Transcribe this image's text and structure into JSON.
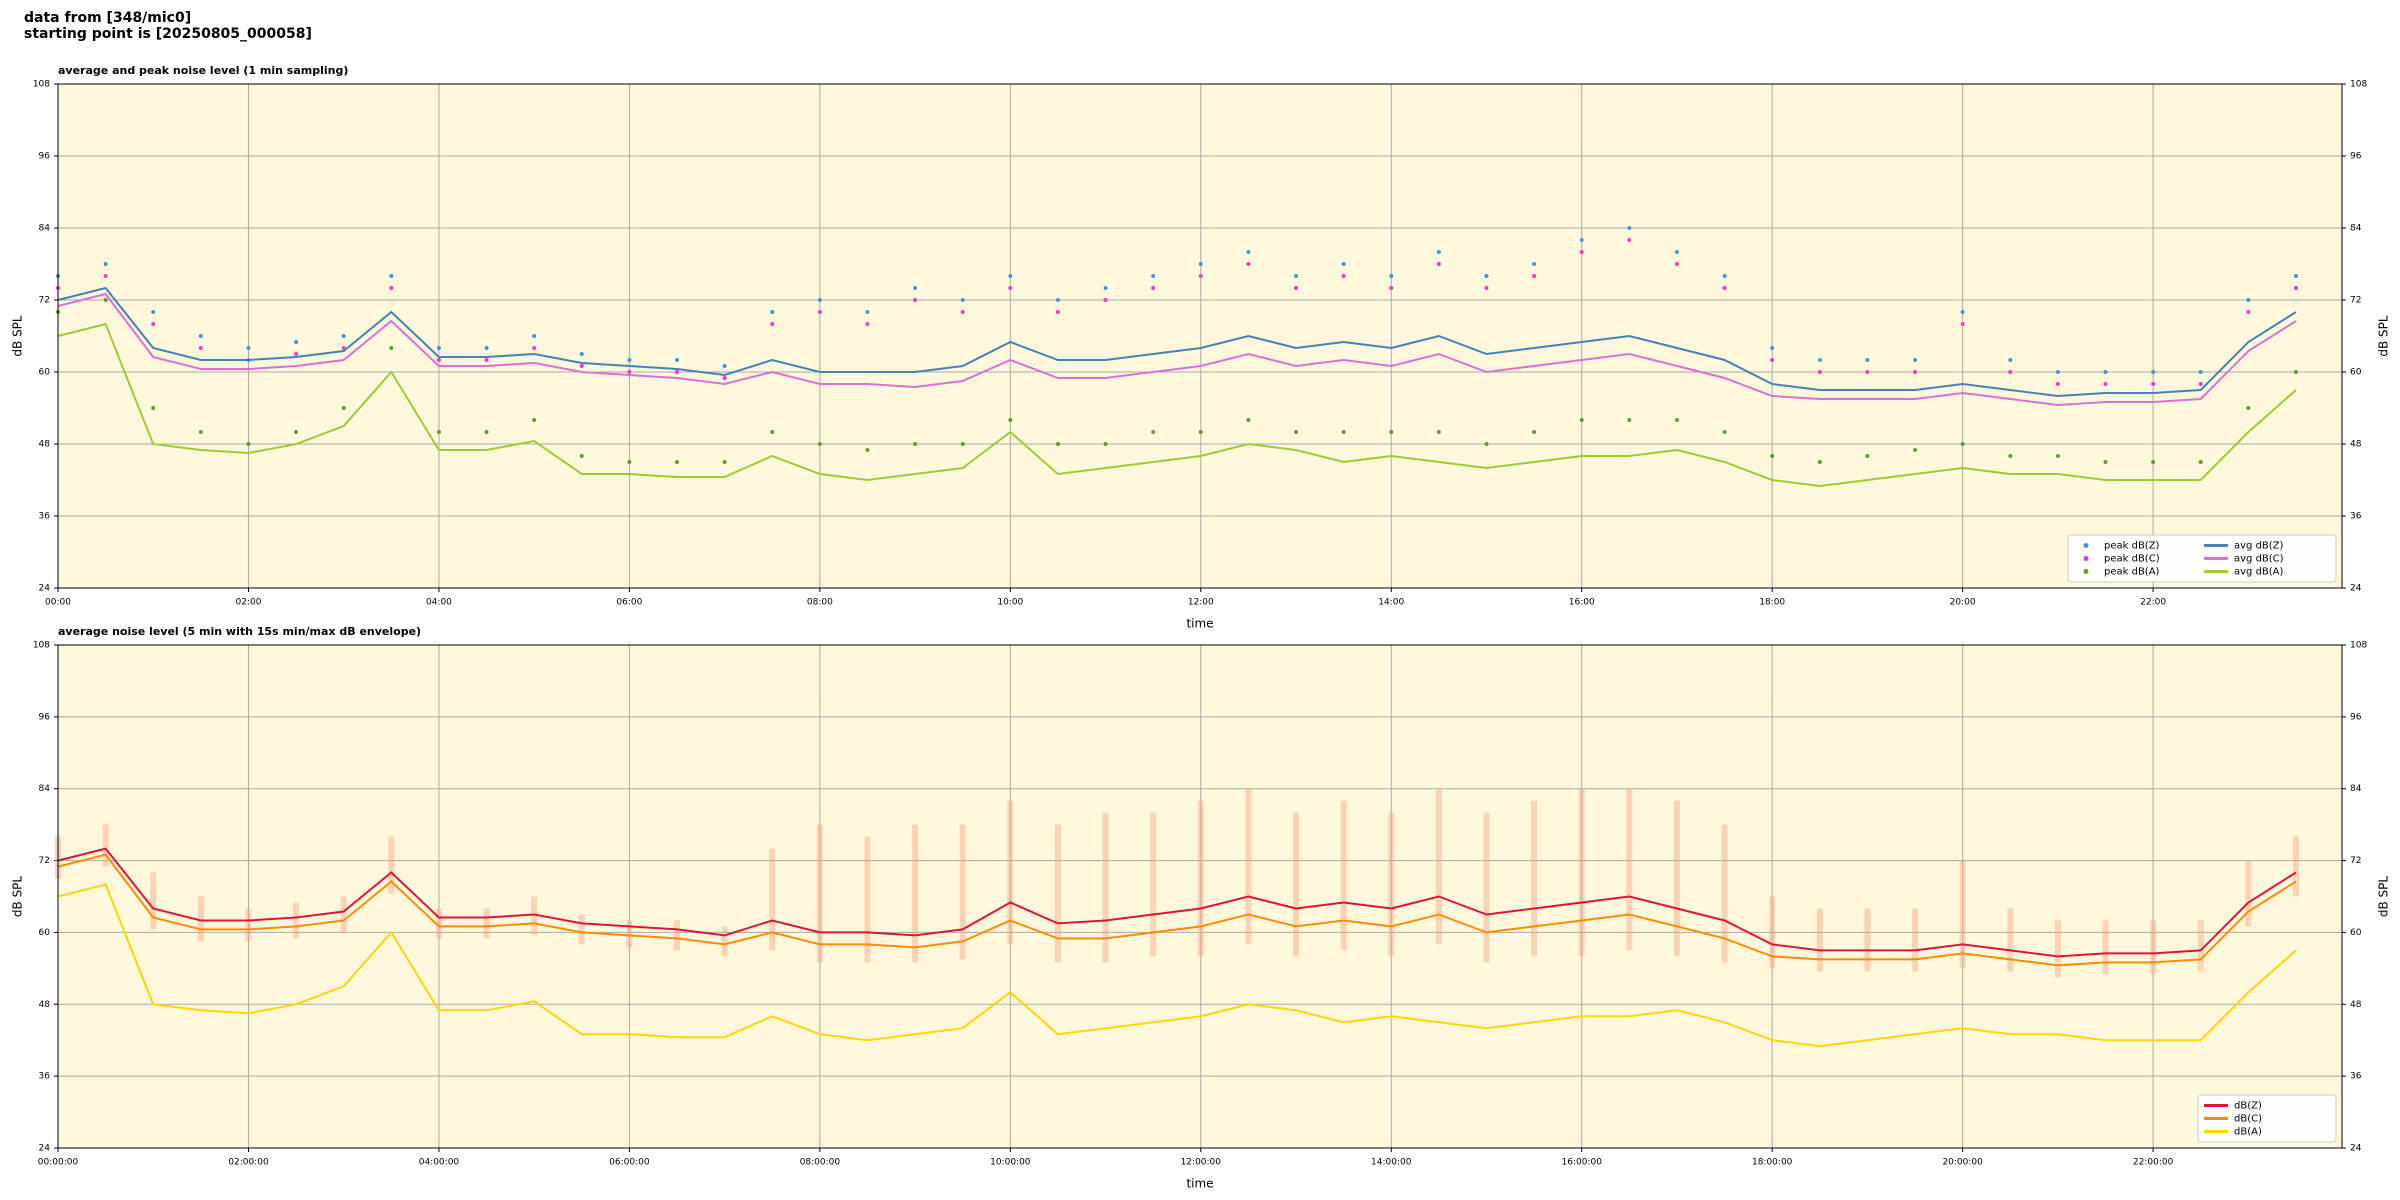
{
  "header": [
    "data from [348/mic0]",
    "starting point is [20250805_000058]"
  ],
  "chart_data": [
    {
      "type": "line",
      "title": "average and peak noise level (1 min sampling)",
      "x_label": "time",
      "y_label": "dB SPL",
      "x": [
        "00:00",
        "00:30",
        "01:00",
        "01:30",
        "02:00",
        "02:30",
        "03:00",
        "03:30",
        "04:00",
        "04:30",
        "05:00",
        "05:30",
        "06:00",
        "06:30",
        "07:00",
        "07:30",
        "08:00",
        "08:30",
        "09:00",
        "09:30",
        "10:00",
        "10:30",
        "11:00",
        "11:30",
        "12:00",
        "12:30",
        "13:00",
        "13:30",
        "14:00",
        "14:30",
        "15:00",
        "15:30",
        "16:00",
        "16:30",
        "17:00",
        "17:30",
        "18:00",
        "18:30",
        "19:00",
        "19:30",
        "20:00",
        "20:30",
        "21:00",
        "21:30",
        "22:00",
        "22:30",
        "23:00",
        "23:30"
      ],
      "xlim": [
        "00:00",
        "23:59"
      ],
      "xticks": [
        "00:00",
        "02:00",
        "04:00",
        "06:00",
        "08:00",
        "10:00",
        "12:00",
        "14:00",
        "16:00",
        "18:00",
        "20:00",
        "22:00"
      ],
      "ylim": [
        24,
        108
      ],
      "yticks": [
        24,
        36,
        48,
        60,
        72,
        84,
        96,
        108
      ],
      "grid": true,
      "legend_position": "lower right",
      "legend_columns": 2,
      "series": [
        {
          "name": "peak dB(Z)",
          "style": "scatter",
          "color": "#3a9ad9",
          "values": [
            76,
            78,
            70,
            66,
            64,
            65,
            66,
            76,
            64,
            64,
            66,
            63,
            62,
            62,
            61,
            70,
            72,
            70,
            74,
            72,
            76,
            72,
            74,
            76,
            78,
            80,
            76,
            78,
            76,
            80,
            76,
            78,
            82,
            84,
            80,
            76,
            64,
            62,
            62,
            62,
            70,
            62,
            60,
            60,
            60,
            60,
            72,
            76
          ]
        },
        {
          "name": "peak dB(C)",
          "style": "scatter",
          "color": "#ff33cc",
          "values": [
            74,
            76,
            68,
            64,
            62,
            63,
            64,
            74,
            62,
            62,
            64,
            61,
            60,
            60,
            59,
            68,
            70,
            68,
            72,
            70,
            74,
            70,
            72,
            74,
            76,
            78,
            74,
            76,
            74,
            78,
            74,
            76,
            80,
            82,
            78,
            74,
            62,
            60,
            60,
            60,
            68,
            60,
            58,
            58,
            58,
            58,
            70,
            74
          ]
        },
        {
          "name": "peak dB(A)",
          "style": "scatter",
          "color": "#5aa02c",
          "values": [
            70,
            72,
            54,
            50,
            48,
            50,
            54,
            64,
            50,
            50,
            52,
            46,
            45,
            45,
            45,
            50,
            48,
            47,
            48,
            48,
            52,
            48,
            48,
            50,
            50,
            52,
            50,
            50,
            50,
            50,
            48,
            50,
            52,
            52,
            52,
            50,
            46,
            45,
            46,
            47,
            48,
            46,
            46,
            45,
            45,
            45,
            54,
            60
          ]
        },
        {
          "name": "avg dB(Z)",
          "style": "line",
          "color": "#4682b4",
          "values": [
            72,
            74,
            64,
            62,
            62,
            62.5,
            63.5,
            70,
            62.5,
            62.5,
            63,
            61.5,
            61,
            60.5,
            59.5,
            62,
            60,
            60,
            60,
            61,
            65,
            62,
            62,
            63,
            64,
            66,
            64,
            65,
            64,
            66,
            63,
            64,
            65,
            66,
            64,
            62,
            58,
            57,
            57,
            57,
            58,
            57,
            56,
            56.5,
            56.5,
            57,
            65,
            70
          ]
        },
        {
          "name": "avg dB(C)",
          "style": "line",
          "color": "#da70d6",
          "values": [
            71,
            73,
            62.5,
            60.5,
            60.5,
            61,
            62,
            68.5,
            61,
            61,
            61.5,
            60,
            59.5,
            59,
            58,
            60,
            58,
            58,
            57.5,
            58.5,
            62,
            59,
            59,
            60,
            61,
            63,
            61,
            62,
            61,
            63,
            60,
            61,
            62,
            63,
            61,
            59,
            56,
            55.5,
            55.5,
            55.5,
            56.5,
            55.5,
            54.5,
            55,
            55,
            55.5,
            63.5,
            68.5
          ]
        },
        {
          "name": "avg dB(A)",
          "style": "line",
          "color": "#9acd32",
          "values": [
            66,
            68,
            48,
            47,
            46.5,
            48,
            51,
            60,
            47,
            47,
            48.5,
            43,
            43,
            42.5,
            42.5,
            46,
            43,
            42,
            43,
            44,
            50,
            43,
            44,
            45,
            46,
            48,
            47,
            45,
            46,
            45,
            44,
            45,
            46,
            46,
            47,
            45,
            42,
            41,
            42,
            43,
            44,
            43,
            43,
            42,
            42,
            42,
            50,
            57
          ]
        }
      ]
    },
    {
      "type": "line",
      "title": "average noise level (5 min with 15s min/max dB envelope)",
      "x_label": "time",
      "y_label": "dB SPL",
      "x": [
        "00:00:00",
        "00:30:00",
        "01:00:00",
        "01:30:00",
        "02:00:00",
        "02:30:00",
        "03:00:00",
        "03:30:00",
        "04:00:00",
        "04:30:00",
        "05:00:00",
        "05:30:00",
        "06:00:00",
        "06:30:00",
        "07:00:00",
        "07:30:00",
        "08:00:00",
        "08:30:00",
        "09:00:00",
        "09:30:00",
        "10:00:00",
        "10:30:00",
        "11:00:00",
        "11:30:00",
        "12:00:00",
        "12:30:00",
        "13:00:00",
        "13:30:00",
        "14:00:00",
        "14:30:00",
        "15:00:00",
        "15:30:00",
        "16:00:00",
        "16:30:00",
        "17:00:00",
        "17:30:00",
        "18:00:00",
        "18:30:00",
        "19:00:00",
        "19:30:00",
        "20:00:00",
        "20:30:00",
        "21:00:00",
        "21:30:00",
        "22:00:00",
        "22:30:00",
        "23:00:00",
        "23:30:00"
      ],
      "xlim": [
        "00:00:00",
        "23:59:00"
      ],
      "xticks": [
        "00:00:00",
        "02:00:00",
        "04:00:00",
        "06:00:00",
        "08:00:00",
        "10:00:00",
        "12:00:00",
        "14:00:00",
        "16:00:00",
        "18:00:00",
        "20:00:00",
        "22:00:00"
      ],
      "ylim": [
        24,
        108
      ],
      "yticks": [
        24,
        36,
        48,
        60,
        72,
        84,
        96,
        108
      ],
      "grid": true,
      "legend_position": "lower right",
      "legend_columns": 1,
      "envelope": {
        "color": "#f4a582",
        "high": [
          76,
          78,
          70,
          66,
          64,
          65,
          66,
          76,
          64,
          64,
          66,
          63,
          62,
          62,
          61,
          74,
          78,
          76,
          78,
          78,
          82,
          78,
          80,
          80,
          82,
          84,
          80,
          82,
          80,
          84,
          80,
          82,
          84,
          84,
          82,
          78,
          66,
          64,
          64,
          64,
          72,
          64,
          62,
          62,
          62,
          62,
          72,
          76
        ],
        "low": [
          69,
          71,
          60.5,
          58.5,
          58.5,
          59,
          60,
          66.5,
          59,
          59,
          59.5,
          58,
          57.5,
          57,
          56,
          57,
          55,
          55,
          55,
          55.5,
          58,
          55,
          55,
          56,
          56,
          58,
          56,
          57,
          56,
          58,
          55,
          56,
          56,
          57,
          56,
          55,
          54,
          53.5,
          53.5,
          53.5,
          54,
          53.5,
          52.5,
          53,
          53,
          53.5,
          61,
          66
        ]
      },
      "series": [
        {
          "name": "dB(Z)",
          "style": "line",
          "color": "#dc143c",
          "values": [
            72,
            74,
            64,
            62,
            62,
            62.5,
            63.5,
            70,
            62.5,
            62.5,
            63,
            61.5,
            61,
            60.5,
            59.5,
            62,
            60,
            60,
            59.5,
            60.5,
            65,
            61.5,
            62,
            63,
            64,
            66,
            64,
            65,
            64,
            66,
            63,
            64,
            65,
            66,
            64,
            62,
            58,
            57,
            57,
            57,
            58,
            57,
            56,
            56.5,
            56.5,
            57,
            65,
            70
          ]
        },
        {
          "name": "dB(C)",
          "style": "line",
          "color": "#ff8c00",
          "values": [
            71,
            73,
            62.5,
            60.5,
            60.5,
            61,
            62,
            68.5,
            61,
            61,
            61.5,
            60,
            59.5,
            59,
            58,
            60,
            58,
            58,
            57.5,
            58.5,
            62,
            59,
            59,
            60,
            61,
            63,
            61,
            62,
            61,
            63,
            60,
            61,
            62,
            63,
            61,
            59,
            56,
            55.5,
            55.5,
            55.5,
            56.5,
            55.5,
            54.5,
            55,
            55,
            55.5,
            63.5,
            68.5
          ]
        },
        {
          "name": "dB(A)",
          "style": "line",
          "color": "#ffd700",
          "values": [
            66,
            68,
            48,
            47,
            46.5,
            48,
            51,
            60,
            47,
            47,
            48.5,
            43,
            43,
            42.5,
            42.5,
            46,
            43,
            42,
            43,
            44,
            50,
            43,
            44,
            45,
            46,
            48,
            47,
            45,
            46,
            45,
            44,
            45,
            46,
            46,
            47,
            45,
            42,
            41,
            42,
            43,
            44,
            43,
            43,
            42,
            42,
            42,
            50,
            57
          ]
        }
      ]
    }
  ]
}
